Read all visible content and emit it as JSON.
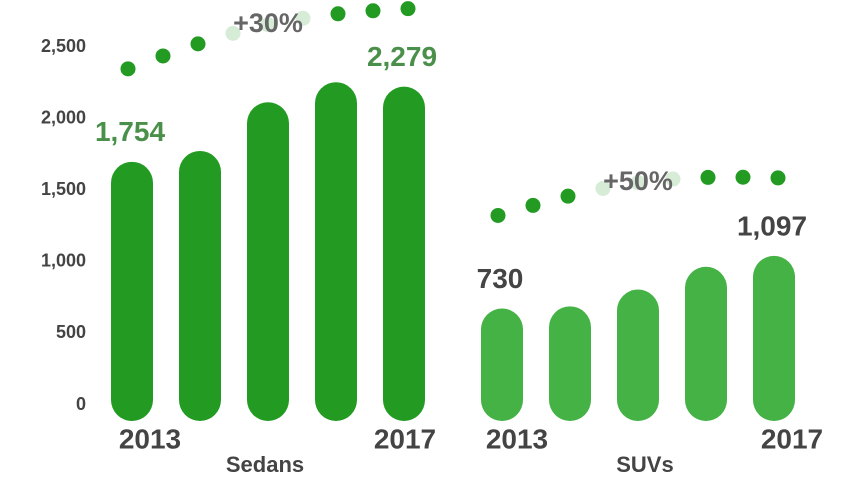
{
  "chart_data": {
    "type": "bar",
    "categories": [
      "2013",
      null,
      null,
      null,
      "2017"
    ],
    "series": [
      {
        "name": "Sedans",
        "color": "#239b23",
        "values": [
          1754,
          1830,
          2170,
          2310,
          2279
        ],
        "value_labels": [
          "1,754",
          null,
          null,
          null,
          "2,279"
        ],
        "annotation": "+30%"
      },
      {
        "name": "SUVs",
        "color": "#44b244",
        "values": [
          730,
          745,
          862,
          1021,
          1097
        ],
        "value_labels": [
          "730",
          null,
          null,
          null,
          "1,097"
        ],
        "annotation": "+50%"
      }
    ],
    "ylim": [
      0,
      2700
    ],
    "yticks": [
      {
        "value": 0,
        "label": "0"
      },
      {
        "value": 500,
        "label": "500"
      },
      {
        "value": 1000,
        "label": "1,000"
      },
      {
        "value": 1500,
        "label": "1,500"
      },
      {
        "value": 2000,
        "label": "2,000"
      },
      {
        "value": 2500,
        "label": "2,500"
      }
    ],
    "grid": false
  }
}
